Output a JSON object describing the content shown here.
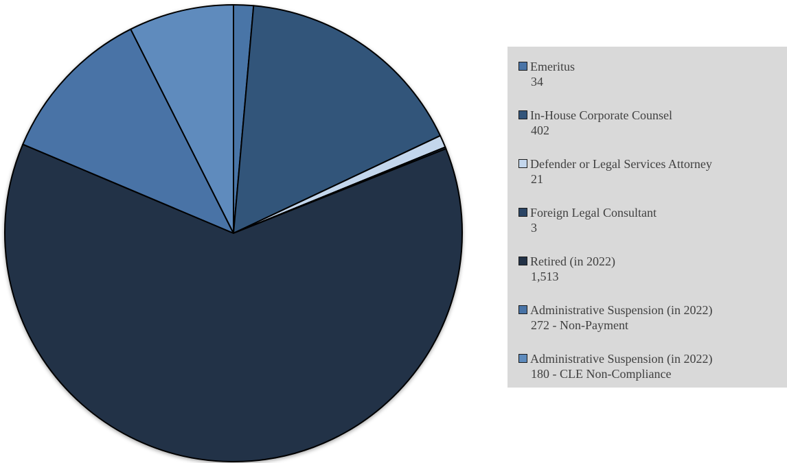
{
  "chart_data": {
    "type": "pie",
    "start_angle_deg": 0,
    "direction": "clockwise",
    "slices": [
      {
        "name": "Emeritus",
        "value": 34,
        "value_label": "34",
        "color": "#4a74a7"
      },
      {
        "name": "In-House Corporate Counsel",
        "value": 402,
        "value_label": "402",
        "color": "#33557a"
      },
      {
        "name": "Defender or Legal Services Attorney",
        "value": 21,
        "value_label": "21",
        "color": "#c3d6ec"
      },
      {
        "name": "Foreign Legal Consultant",
        "value": 3,
        "value_label": "3",
        "color": "#2b4565"
      },
      {
        "name": "Retired (in 2022)",
        "value": 1513,
        "value_label": "1,513",
        "color": "#233247"
      },
      {
        "name": "Administrative Suspension (in 2022)",
        "value": 272,
        "value_label": "272 - Non-Payment",
        "color": "#4873a6"
      },
      {
        "name": "Administrative Suspension (in 2022)",
        "value": 180,
        "value_label": "180 - CLE Non-Compliance",
        "color": "#5e8bbd"
      }
    ]
  }
}
